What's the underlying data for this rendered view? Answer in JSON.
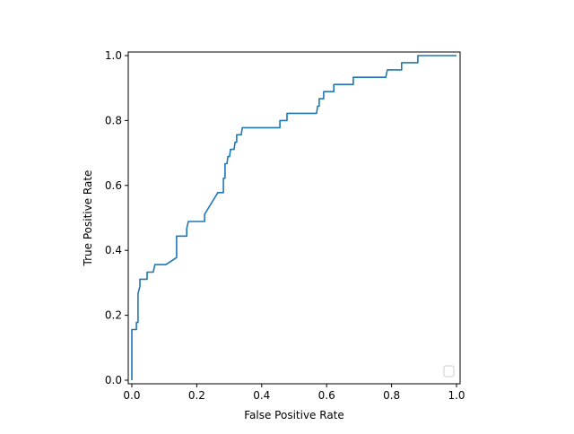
{
  "chart_data": {
    "type": "line",
    "title": "",
    "xlabel": "False Positive Rate",
    "ylabel": "True Positive Rate",
    "xlim": [
      -0.011,
      1.011
    ],
    "ylim": [
      -0.011,
      1.011
    ],
    "xticks": [
      0.0,
      0.2,
      0.4,
      0.6,
      0.8,
      1.0
    ],
    "yticks": [
      0.0,
      0.2,
      0.4,
      0.6,
      0.8,
      1.0
    ],
    "xtick_labels": [
      "0.0",
      "0.2",
      "0.4",
      "0.6",
      "0.8",
      "1.0"
    ],
    "ytick_labels": [
      "0.0",
      "0.2",
      "0.4",
      "0.6",
      "0.8",
      "1.0"
    ],
    "grid": false,
    "legend": {
      "placement": "lower-right",
      "entries": []
    },
    "series": [
      {
        "color": "#1f77b4",
        "x": [
          0,
          0,
          0.014,
          0.014,
          0.019,
          0.019,
          0.025,
          0.025,
          0.047,
          0.047,
          0.066,
          0.071,
          0.105,
          0.138,
          0.138,
          0.169,
          0.169,
          0.174,
          0.224,
          0.224,
          0.265,
          0.282,
          0.282,
          0.287,
          0.287,
          0.293,
          0.296,
          0.301,
          0.304,
          0.315,
          0.318,
          0.323,
          0.323,
          0.337,
          0.34,
          0.456,
          0.456,
          0.478,
          0.478,
          0.569,
          0.572,
          0.577,
          0.577,
          0.591,
          0.591,
          0.622,
          0.622,
          0.682,
          0.682,
          0.782,
          0.787,
          0.831,
          0.831,
          0.881,
          0.881,
          1.0
        ],
        "y": [
          0,
          0.156,
          0.156,
          0.178,
          0.178,
          0.267,
          0.289,
          0.311,
          0.311,
          0.333,
          0.333,
          0.356,
          0.356,
          0.378,
          0.444,
          0.444,
          0.467,
          0.489,
          0.489,
          0.511,
          0.578,
          0.578,
          0.622,
          0.622,
          0.667,
          0.667,
          0.689,
          0.689,
          0.711,
          0.711,
          0.733,
          0.733,
          0.756,
          0.756,
          0.778,
          0.778,
          0.8,
          0.8,
          0.822,
          0.822,
          0.844,
          0.844,
          0.867,
          0.867,
          0.889,
          0.889,
          0.911,
          0.911,
          0.933,
          0.933,
          0.956,
          0.956,
          0.978,
          0.978,
          1.0,
          1.0
        ]
      }
    ]
  }
}
